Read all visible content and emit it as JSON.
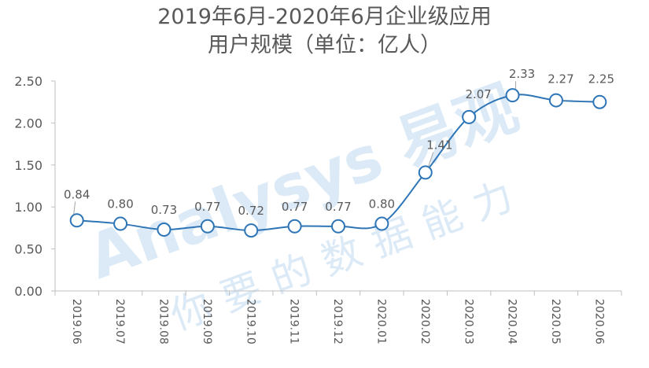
{
  "title_line1": "2019年6月-2020年6月企业级应用",
  "title_line2": "用户规模（单位：亿人）",
  "watermark": [
    "Analysys 易观",
    "你要的数据能力"
  ],
  "chart_data": {
    "type": "line",
    "title": "2019年6月-2020年6月企业级应用用户规模（单位：亿人）",
    "categories": [
      "2019.06",
      "2019.07",
      "2019.08",
      "2019.09",
      "2019.10",
      "2019.11",
      "2019.12",
      "2020.01",
      "2020.02",
      "2020.03",
      "2020.04",
      "2020.05",
      "2020.06"
    ],
    "values": [
      0.84,
      0.8,
      0.73,
      0.77,
      0.72,
      0.77,
      0.77,
      0.8,
      1.41,
      2.07,
      2.33,
      2.27,
      2.25
    ],
    "value_labels": [
      "0.84",
      "0.80",
      "0.73",
      "0.77",
      "0.72",
      "0.77",
      "0.77",
      "0.80",
      "1.41",
      "2.07",
      "2.33",
      "2.27",
      "2.25"
    ],
    "ylim": [
      0,
      2.5
    ],
    "yticks": [
      "0.00",
      "0.50",
      "1.00",
      "1.50",
      "2.00",
      "2.50"
    ],
    "xlabel": "",
    "ylabel": "",
    "grid": false,
    "legend": "none",
    "colors": {
      "line": "#2e75b6",
      "marker_fill": "#ffffff",
      "axis": "#bfbfbf",
      "text": "#595959",
      "watermark": "#dbeaf6"
    }
  }
}
